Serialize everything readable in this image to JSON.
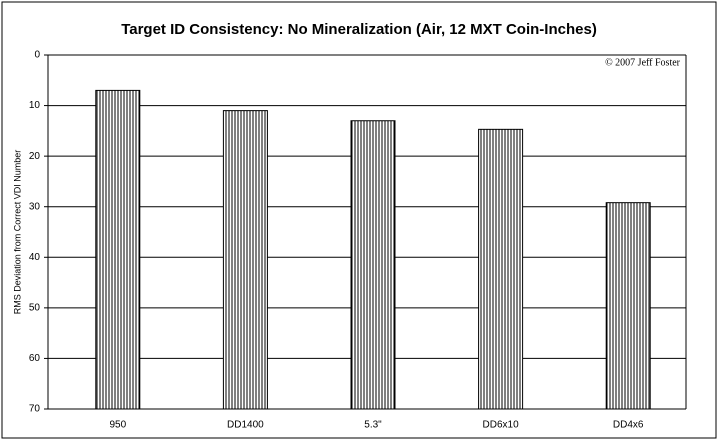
{
  "chart_data": {
    "type": "bar",
    "title": "Target ID Consistency: No Mineralization (Air, 12 MXT Coin-Inches)",
    "annotation": "© 2007 Jeff Foster",
    "y_label": "RMS Deviation from Correct VDI Number",
    "categories": [
      "950",
      "DD1400",
      "5.3\"",
      "DD6x10",
      "DD4x6"
    ],
    "values": [
      7,
      11,
      13,
      14.7,
      29.2
    ],
    "color": "#000000",
    "ylim": [
      0,
      70
    ],
    "yticks": [
      0,
      10,
      20,
      30,
      40,
      50,
      60,
      70
    ],
    "y_inverted": true,
    "grid": true
  }
}
